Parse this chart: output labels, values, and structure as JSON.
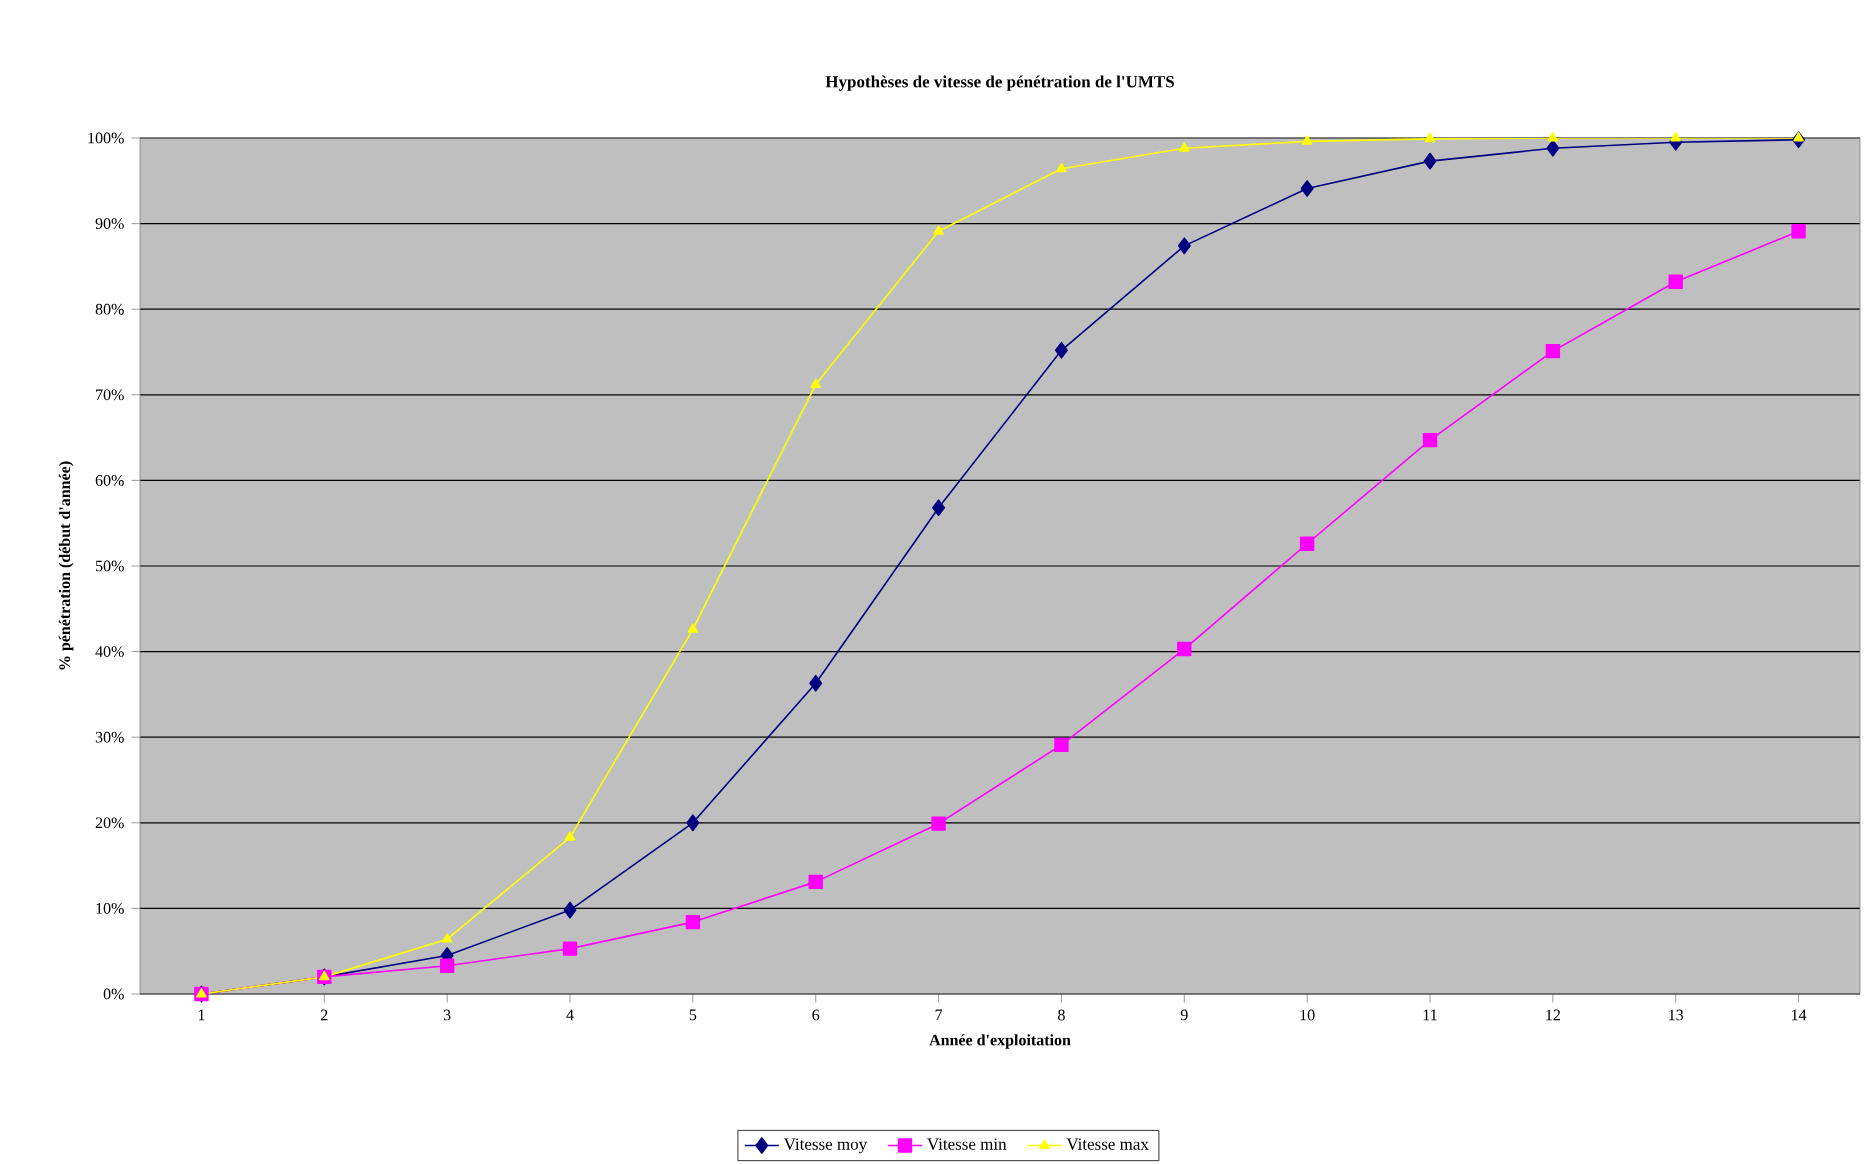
{
  "chart_data": {
    "type": "line",
    "title": "Hypothèses de vitesse de pénétration de l'UMTS",
    "xlabel": "Année d'exploitation",
    "ylabel": "% pénétration (début d'année)",
    "categories": [
      "1",
      "2",
      "3",
      "4",
      "5",
      "6",
      "7",
      "8",
      "9",
      "10",
      "11",
      "12",
      "13",
      "14"
    ],
    "series": [
      {
        "name": "Vitesse moy",
        "color": "#000080",
        "marker": "diamond",
        "values": [
          0,
          2,
          4.5,
          9.8,
          20,
          36.3,
          56.8,
          75.2,
          87.4,
          94.1,
          97.3,
          98.8,
          99.5,
          99.8
        ]
      },
      {
        "name": "Vitesse min",
        "color": "#ff00ff",
        "marker": "square",
        "values": [
          0,
          2,
          3.3,
          5.3,
          8.4,
          13.1,
          19.9,
          29.1,
          40.3,
          52.6,
          64.7,
          75.1,
          83.2,
          89.1
        ]
      },
      {
        "name": "Vitesse max",
        "color": "#ffff00",
        "marker": "triangle",
        "values": [
          0,
          2,
          6.4,
          18.3,
          42.6,
          71.2,
          89.1,
          96.4,
          98.8,
          99.6,
          99.9,
          100,
          100,
          100
        ]
      }
    ],
    "ylim": [
      0,
      100
    ],
    "yticks": [
      {
        "value": 0,
        "label": "0%"
      },
      {
        "value": 10,
        "label": "10%"
      },
      {
        "value": 20,
        "label": "20%"
      },
      {
        "value": 30,
        "label": "30%"
      },
      {
        "value": 40,
        "label": "40%"
      },
      {
        "value": 50,
        "label": "50%"
      },
      {
        "value": 60,
        "label": "60%"
      },
      {
        "value": 70,
        "label": "70%"
      },
      {
        "value": 80,
        "label": "80%"
      },
      {
        "value": 90,
        "label": "90%"
      },
      {
        "value": 100,
        "label": "100%"
      }
    ],
    "grid": "y",
    "legend": "bottom",
    "line_style": "solid"
  }
}
